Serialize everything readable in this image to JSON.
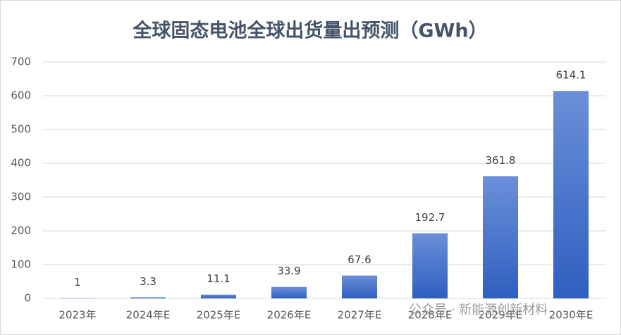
{
  "chart_data": {
    "type": "bar",
    "title": "全球固态电池全球出货量出预测（GWh）",
    "categories": [
      "2023年",
      "2024年E",
      "2025年E",
      "2026年E",
      "2027年E",
      "2028年E",
      "2029年E",
      "2030年E"
    ],
    "values": [
      1,
      3.3,
      11.1,
      33.9,
      67.6,
      192.7,
      361.8,
      614.1
    ],
    "color": "#4472c4",
    "ylim": [
      0,
      700
    ],
    "yticks": [
      0,
      100,
      200,
      300,
      400,
      500,
      600,
      700
    ],
    "grid": true,
    "watermark": "公众号 · 新能源创新材料"
  }
}
